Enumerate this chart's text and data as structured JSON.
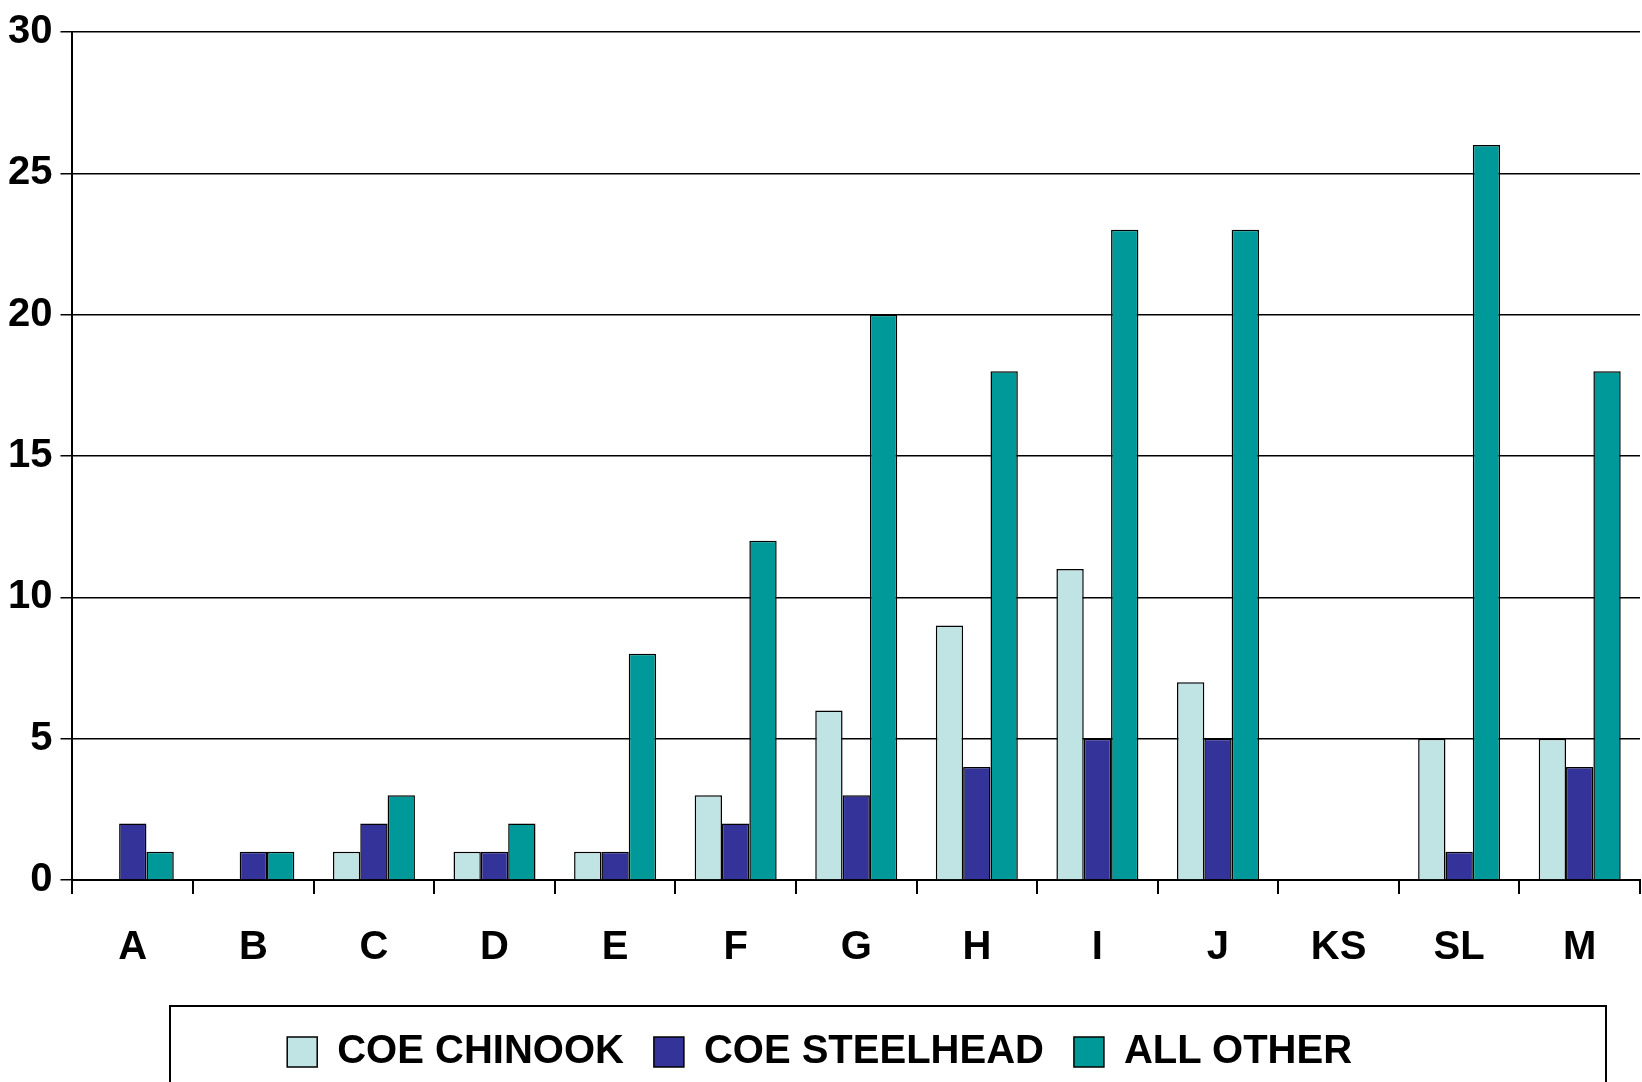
{
  "chart_data": {
    "type": "bar",
    "categories": [
      "A",
      "B",
      "C",
      "D",
      "E",
      "F",
      "G",
      "H",
      "I",
      "J",
      "KS",
      "SL",
      "M"
    ],
    "series": [
      {
        "name": "COE CHINOOK",
        "color": "#c0e4e4",
        "values": [
          0,
          0,
          1,
          1,
          1,
          3,
          6,
          9,
          11,
          7,
          0,
          5,
          5
        ]
      },
      {
        "name": "COE STEELHEAD",
        "color": "#333399",
        "values": [
          2,
          1,
          2,
          1,
          1,
          2,
          3,
          4,
          5,
          5,
          0,
          1,
          4
        ]
      },
      {
        "name": "ALL OTHER",
        "color": "#009999",
        "values": [
          1,
          1,
          3,
          2,
          8,
          12,
          20,
          18,
          23,
          23,
          0,
          26,
          18
        ]
      }
    ],
    "ylim": [
      0,
      30
    ],
    "yticks": [
      0,
      5,
      10,
      15,
      20,
      25,
      30
    ],
    "grid": "y",
    "legend": "bottom"
  }
}
